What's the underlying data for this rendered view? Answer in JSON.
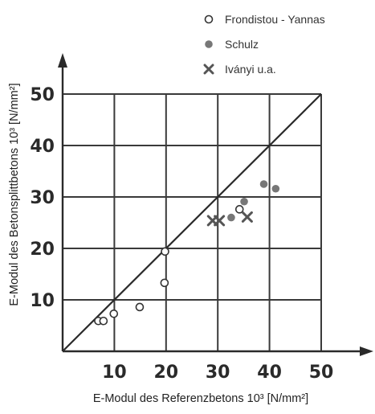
{
  "chart_data": {
    "type": "scatter",
    "xlabel": "E-Modul des Referenzbetons 10³ [N/mm²]",
    "ylabel": "E-Modul des Betonsplittbetons 10³ [N/mm²]",
    "xlim": [
      0,
      50
    ],
    "ylim": [
      0,
      50
    ],
    "x_ticks": [
      "10",
      "20",
      "30",
      "40",
      "50"
    ],
    "y_ticks": [
      "10",
      "20",
      "30",
      "40",
      "50"
    ],
    "grid": true,
    "legend_position": "top-right",
    "reference_line": {
      "x": [
        0,
        50
      ],
      "y": [
        0,
        50
      ]
    },
    "series": [
      {
        "name": "Frondistou - Yannas",
        "marker": "open-circle",
        "color": "#333333",
        "points": [
          {
            "x": 6.9,
            "y": 5.9
          },
          {
            "x": 7.9,
            "y": 5.9
          },
          {
            "x": 9.9,
            "y": 7.3
          },
          {
            "x": 14.9,
            "y": 8.6
          },
          {
            "x": 19.7,
            "y": 13.3
          },
          {
            "x": 19.8,
            "y": 19.4
          },
          {
            "x": 34.2,
            "y": 27.6
          }
        ]
      },
      {
        "name": "Schulz",
        "marker": "filled-circle",
        "color": "#777777",
        "points": [
          {
            "x": 32.6,
            "y": 26.0
          },
          {
            "x": 35.1,
            "y": 29.1
          },
          {
            "x": 38.9,
            "y": 32.5
          },
          {
            "x": 41.2,
            "y": 31.6
          }
        ]
      },
      {
        "name": "Iványi u.a.",
        "marker": "cross",
        "color": "#555555",
        "points": [
          {
            "x": 29.0,
            "y": 25.4
          },
          {
            "x": 30.3,
            "y": 25.4
          },
          {
            "x": 35.7,
            "y": 26.1
          }
        ]
      }
    ]
  }
}
